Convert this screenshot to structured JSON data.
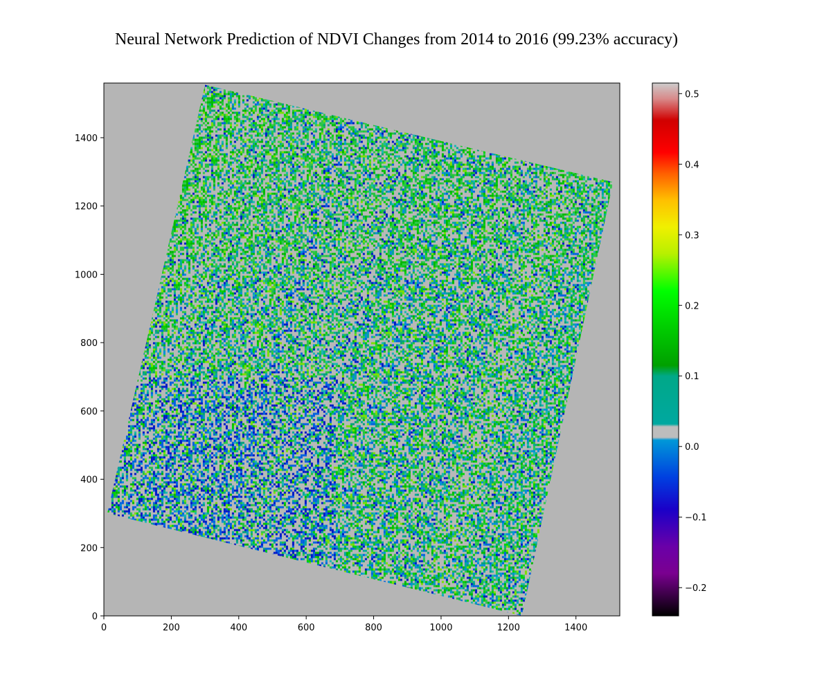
{
  "chart_data": {
    "type": "heatmap",
    "title": "Neural Network Prediction of NDVI Changes from 2014 to 2016 (99.23% accuracy)",
    "xlabel": "",
    "ylabel": "",
    "xlim": [
      0,
      1530
    ],
    "ylim": [
      0,
      1560
    ],
    "x_ticks": [
      0,
      200,
      400,
      600,
      800,
      1000,
      1200,
      1400
    ],
    "y_ticks": [
      0,
      200,
      400,
      600,
      800,
      1000,
      1200,
      1400
    ],
    "x_tick_labels": [
      "0",
      "200",
      "400",
      "600",
      "800",
      "1000",
      "1200",
      "1400"
    ],
    "y_tick_labels": [
      "0",
      "200",
      "400",
      "600",
      "800",
      "1000",
      "1200",
      "1400"
    ],
    "background_color": "#b5b5b5",
    "scene_corners": [
      [
        300,
        1555
      ],
      [
        1510,
        1270
      ],
      [
        1240,
        0
      ],
      [
        10,
        300
      ]
    ],
    "colormap": "nipy_spectral",
    "colorbar": {
      "range": [
        -0.24,
        0.515
      ],
      "ticks": [
        0.5,
        0.4,
        0.3,
        0.2,
        0.1,
        0.0,
        -0.1,
        -0.2
      ],
      "tick_labels": [
        "0.5",
        "0.4",
        "0.3",
        "0.2",
        "0.1",
        "0.0",
        "−0.1",
        "−0.2"
      ],
      "zero_band_color": "#bdbdbd"
    }
  }
}
